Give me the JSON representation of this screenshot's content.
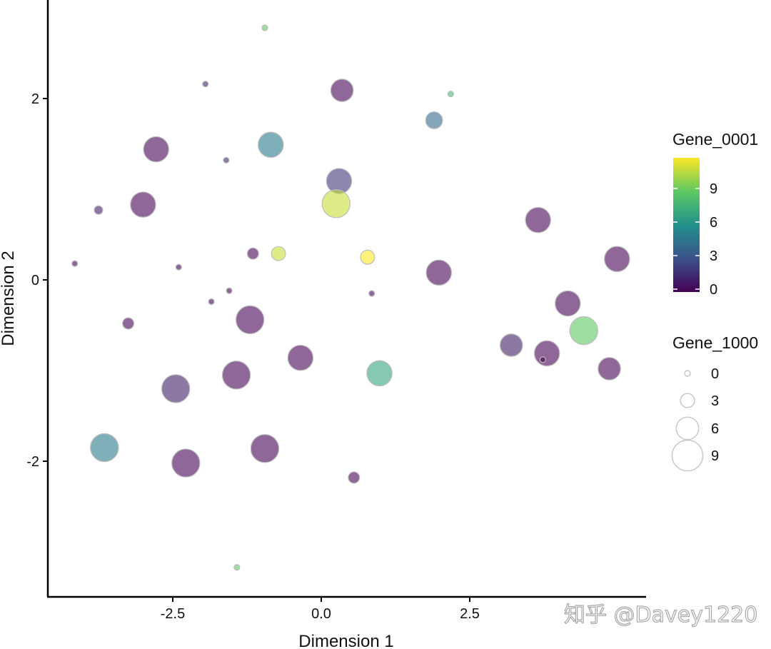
{
  "chart_data": {
    "type": "scatter",
    "title": "",
    "xlabel": "Dimension 1",
    "ylabel": "Dimension 2",
    "xlim": [
      -4.6,
      5.4
    ],
    "ylim": [
      -3.4,
      3.0
    ],
    "x_ticks": [
      -2.5,
      0.0,
      2.5
    ],
    "x_tick_labels": [
      "-2.5",
      "0.0",
      "2.5"
    ],
    "y_ticks": [
      2,
      0,
      -2
    ],
    "y_tick_labels": [
      "2",
      "0",
      "-2"
    ],
    "grid": false,
    "point_opacity": 0.6,
    "color_legend": {
      "title": "Gene_0001",
      "min": 0,
      "max": 12,
      "ticks": [
        9,
        6,
        3,
        0
      ],
      "tick_labels": [
        "9",
        "6",
        "3",
        "0"
      ],
      "colors": [
        "#440154",
        "#3b528b",
        "#21918c",
        "#5ec962",
        "#fde725"
      ]
    },
    "size_legend": {
      "title": "Gene_1000",
      "values": [
        0,
        3,
        6,
        9
      ],
      "labels": [
        "0",
        "3",
        "6",
        "9"
      ]
    },
    "points": [
      {
        "x": -0.95,
        "y": 2.78,
        "color": 9,
        "size": 0
      },
      {
        "x": -1.95,
        "y": 2.16,
        "color": 1,
        "size": 0
      },
      {
        "x": 0.35,
        "y": 2.09,
        "color": 0,
        "size": 6
      },
      {
        "x": 2.18,
        "y": 2.05,
        "color": 8,
        "size": 0
      },
      {
        "x": 1.9,
        "y": 1.76,
        "color": 4,
        "size": 4
      },
      {
        "x": -0.85,
        "y": 1.49,
        "color": 5,
        "size": 7
      },
      {
        "x": -2.78,
        "y": 1.44,
        "color": 0,
        "size": 7
      },
      {
        "x": -1.6,
        "y": 1.32,
        "color": 1,
        "size": 0
      },
      {
        "x": 0.3,
        "y": 1.09,
        "color": 2,
        "size": 7
      },
      {
        "x": 0.25,
        "y": 0.84,
        "color": 11,
        "size": 8
      },
      {
        "x": -3.0,
        "y": 0.83,
        "color": 0,
        "size": 7
      },
      {
        "x": -3.75,
        "y": 0.77,
        "color": 1,
        "size": 1
      },
      {
        "x": 3.65,
        "y": 0.66,
        "color": 0,
        "size": 7
      },
      {
        "x": -0.72,
        "y": 0.29,
        "color": 11,
        "size": 3
      },
      {
        "x": -1.15,
        "y": 0.29,
        "color": 0,
        "size": 2
      },
      {
        "x": 0.78,
        "y": 0.25,
        "color": 12,
        "size": 3
      },
      {
        "x": 4.98,
        "y": 0.23,
        "color": 0,
        "size": 7
      },
      {
        "x": -4.15,
        "y": 0.18,
        "color": 0,
        "size": 0
      },
      {
        "x": -2.4,
        "y": 0.14,
        "color": 0,
        "size": 0
      },
      {
        "x": 1.98,
        "y": 0.08,
        "color": 0,
        "size": 7
      },
      {
        "x": -1.55,
        "y": -0.12,
        "color": 0,
        "size": 0
      },
      {
        "x": 0.85,
        "y": -0.15,
        "color": 0,
        "size": 0
      },
      {
        "x": -1.85,
        "y": -0.24,
        "color": 0,
        "size": 0
      },
      {
        "x": 4.15,
        "y": -0.26,
        "color": 0,
        "size": 7
      },
      {
        "x": -1.2,
        "y": -0.44,
        "color": 0,
        "size": 8
      },
      {
        "x": -3.25,
        "y": -0.48,
        "color": 0,
        "size": 2
      },
      {
        "x": 4.42,
        "y": -0.56,
        "color": 9,
        "size": 8
      },
      {
        "x": 3.2,
        "y": -0.72,
        "color": 1,
        "size": 6
      },
      {
        "x": 3.8,
        "y": -0.81,
        "color": 0,
        "size": 7
      },
      {
        "x": -0.35,
        "y": -0.86,
        "color": 0,
        "size": 7
      },
      {
        "x": 3.73,
        "y": -0.88,
        "color": 0,
        "size": 0
      },
      {
        "x": 4.85,
        "y": -0.98,
        "color": 0,
        "size": 6
      },
      {
        "x": -1.43,
        "y": -1.05,
        "color": 0,
        "size": 8
      },
      {
        "x": 0.98,
        "y": -1.03,
        "color": 7,
        "size": 7
      },
      {
        "x": -2.45,
        "y": -1.2,
        "color": 1,
        "size": 8
      },
      {
        "x": -3.65,
        "y": -1.85,
        "color": 5,
        "size": 8
      },
      {
        "x": -0.95,
        "y": -1.86,
        "color": 0,
        "size": 8
      },
      {
        "x": -2.28,
        "y": -2.02,
        "color": 0,
        "size": 8
      },
      {
        "x": 0.55,
        "y": -2.18,
        "color": 0,
        "size": 2
      },
      {
        "x": -1.42,
        "y": -3.17,
        "color": 9,
        "size": 0
      }
    ]
  },
  "watermark": {
    "text": "知乎 @Davey1220"
  }
}
